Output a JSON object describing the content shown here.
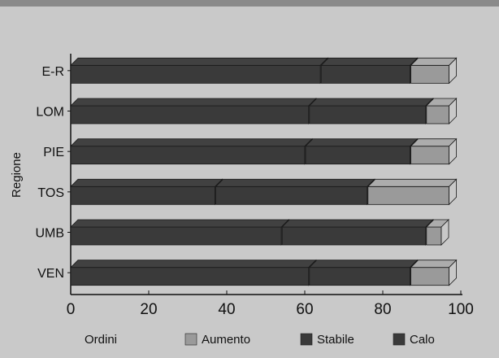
{
  "chart_data": {
    "type": "bar",
    "orientation": "horizontal",
    "stacked": true,
    "style": "3d",
    "ylabel": "Regione",
    "legend_title": "Ordini",
    "legend_position": "bottom",
    "categories": [
      "E-R",
      "LOM",
      "PIE",
      "TOS",
      "UMB",
      "VEN"
    ],
    "series": [
      {
        "name": "Calo",
        "color": "#3a3a3a",
        "values": [
          64,
          61,
          60,
          37,
          54,
          61
        ]
      },
      {
        "name": "Stabile",
        "color": "#3a3a3a",
        "values": [
          23,
          30,
          27,
          39,
          37,
          26
        ]
      },
      {
        "name": "Aumento",
        "color": "#9a9a9a",
        "values": [
          10,
          6,
          10,
          21,
          4,
          10
        ]
      }
    ],
    "legend_order": [
      "Aumento",
      "Stabile",
      "Calo"
    ],
    "xlim": [
      0,
      100
    ],
    "xticks": [
      0,
      20,
      40,
      60,
      80,
      100
    ],
    "grid": false
  }
}
